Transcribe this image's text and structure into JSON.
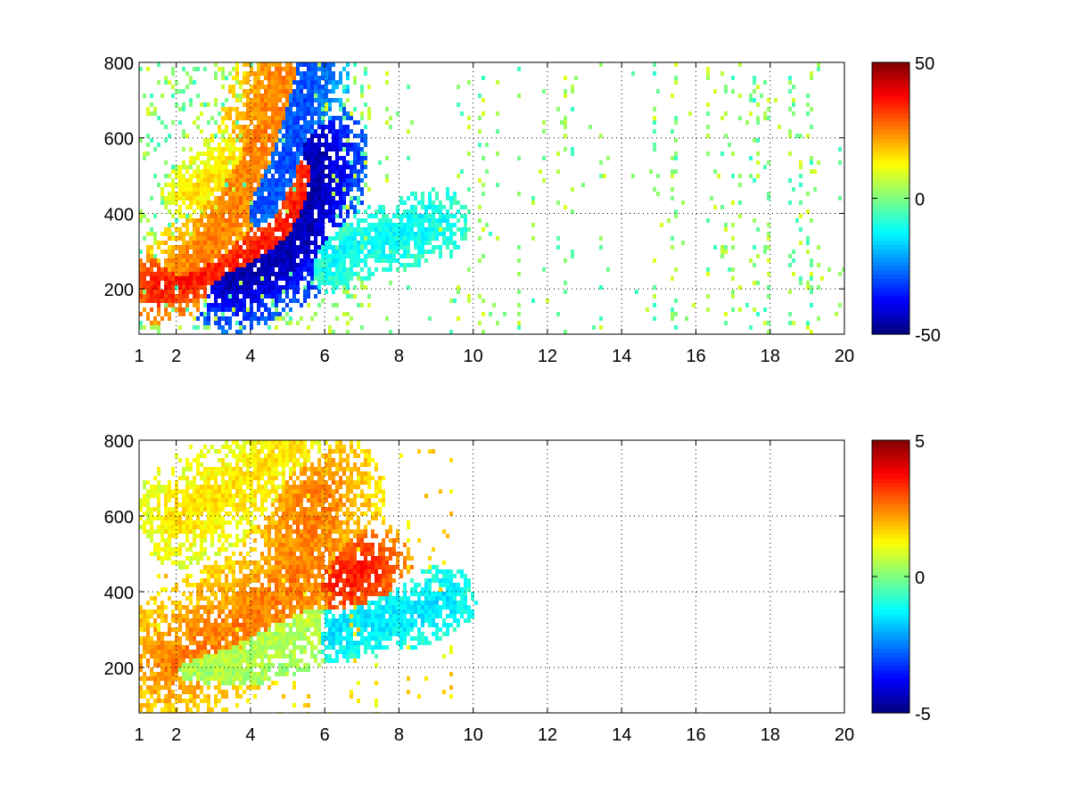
{
  "chart_data": [
    {
      "type": "heatmap",
      "title": "",
      "xlabel": "",
      "ylabel": "",
      "xlim": [
        1,
        20
      ],
      "ylim": [
        80,
        800
      ],
      "x_ticks": [
        1,
        2,
        4,
        6,
        8,
        10,
        12,
        14,
        16,
        18,
        20
      ],
      "y_ticks": [
        200,
        400,
        600,
        800
      ],
      "grid": true,
      "colormap": "jet",
      "colorbar": {
        "range": [
          -50,
          50
        ],
        "ticks": [
          50,
          0,
          -50
        ],
        "placement": "right"
      },
      "features": [
        {
          "name": "positive ridge",
          "points": [
            [
              1.5,
              205
            ],
            [
              2.5,
              230
            ],
            [
              3.5,
              265
            ],
            [
              4.2,
              305
            ],
            [
              4.8,
              350
            ],
            [
              5.3,
              420
            ],
            [
              5.6,
              520
            ]
          ],
          "value": 35,
          "width": 22
        },
        {
          "name": "positive ridge",
          "points": [
            [
              2.2,
              240
            ],
            [
              3.0,
              320
            ],
            [
              3.6,
              420
            ],
            [
              4.0,
              520
            ],
            [
              4.4,
              640
            ],
            [
              4.8,
              760
            ]
          ],
          "value": 25,
          "width": 26
        },
        {
          "name": "negative ridge",
          "points": [
            [
              3.5,
              220
            ],
            [
              4.2,
              250
            ],
            [
              4.8,
              280
            ],
            [
              5.3,
              330
            ],
            [
              5.6,
              420
            ],
            [
              5.8,
              560
            ]
          ],
          "value": -45,
          "width": 30
        },
        {
          "name": "negative ridge",
          "points": [
            [
              4.3,
              420
            ],
            [
              4.9,
              520
            ],
            [
              5.3,
              640
            ],
            [
              5.6,
              780
            ]
          ],
          "value": -30,
          "width": 24
        },
        {
          "name": "weak band",
          "points": [
            [
              6.2,
              280
            ],
            [
              7.0,
              320
            ],
            [
              8.0,
              340
            ],
            [
              9.0,
              380
            ]
          ],
          "value": -12,
          "width": 20
        },
        {
          "name": "weak band",
          "points": [
            [
              2.4,
              450
            ],
            [
              3.0,
              500
            ],
            [
              3.6,
              560
            ]
          ],
          "value": 15,
          "width": 18
        }
      ],
      "background": {
        "x_range": [
          1,
          20
        ],
        "value_range": [
          -8,
          10
        ]
      }
    },
    {
      "type": "heatmap",
      "title": "",
      "xlabel": "",
      "ylabel": "",
      "xlim": [
        1,
        20
      ],
      "ylim": [
        80,
        800
      ],
      "x_ticks": [
        1,
        2,
        4,
        6,
        8,
        10,
        12,
        14,
        16,
        18,
        20
      ],
      "y_ticks": [
        200,
        400,
        600,
        800
      ],
      "grid": true,
      "colormap": "jet",
      "colorbar": {
        "range": [
          -5,
          5
        ],
        "ticks": [
          5,
          0,
          -5
        ],
        "placement": "right"
      },
      "features": [
        {
          "name": "main band",
          "points": [
            [
              2.0,
              220
            ],
            [
              3.0,
              270
            ],
            [
              4.0,
              330
            ],
            [
              5.0,
              400
            ],
            [
              5.5,
              500
            ],
            [
              5.8,
              650
            ]
          ],
          "value": 2.5,
          "width": 40
        },
        {
          "name": "lower band",
          "points": [
            [
              2.2,
              200
            ],
            [
              3.5,
              230
            ],
            [
              4.5,
              270
            ],
            [
              5.5,
              310
            ]
          ],
          "value": 0.5,
          "width": 24
        },
        {
          "name": "upper arc",
          "points": [
            [
              2.2,
              600
            ],
            [
              3.0,
              640
            ],
            [
              3.8,
              680
            ],
            [
              4.5,
              740
            ],
            [
              5.0,
              790
            ]
          ],
          "value": 1.5,
          "width": 30
        },
        {
          "name": "cyan band",
          "points": [
            [
              6.2,
              300
            ],
            [
              7.5,
              320
            ],
            [
              8.5,
              350
            ],
            [
              9.2,
              380
            ]
          ],
          "value": -1.5,
          "width": 20
        },
        {
          "name": "red patch",
          "points": [
            [
              6.5,
              430
            ],
            [
              7.0,
              460
            ]
          ],
          "value": 3.5,
          "width": 30
        }
      ],
      "background": {
        "x_range": [
          1.5,
          9.5
        ],
        "value_range": [
          1,
          2
        ]
      }
    }
  ]
}
